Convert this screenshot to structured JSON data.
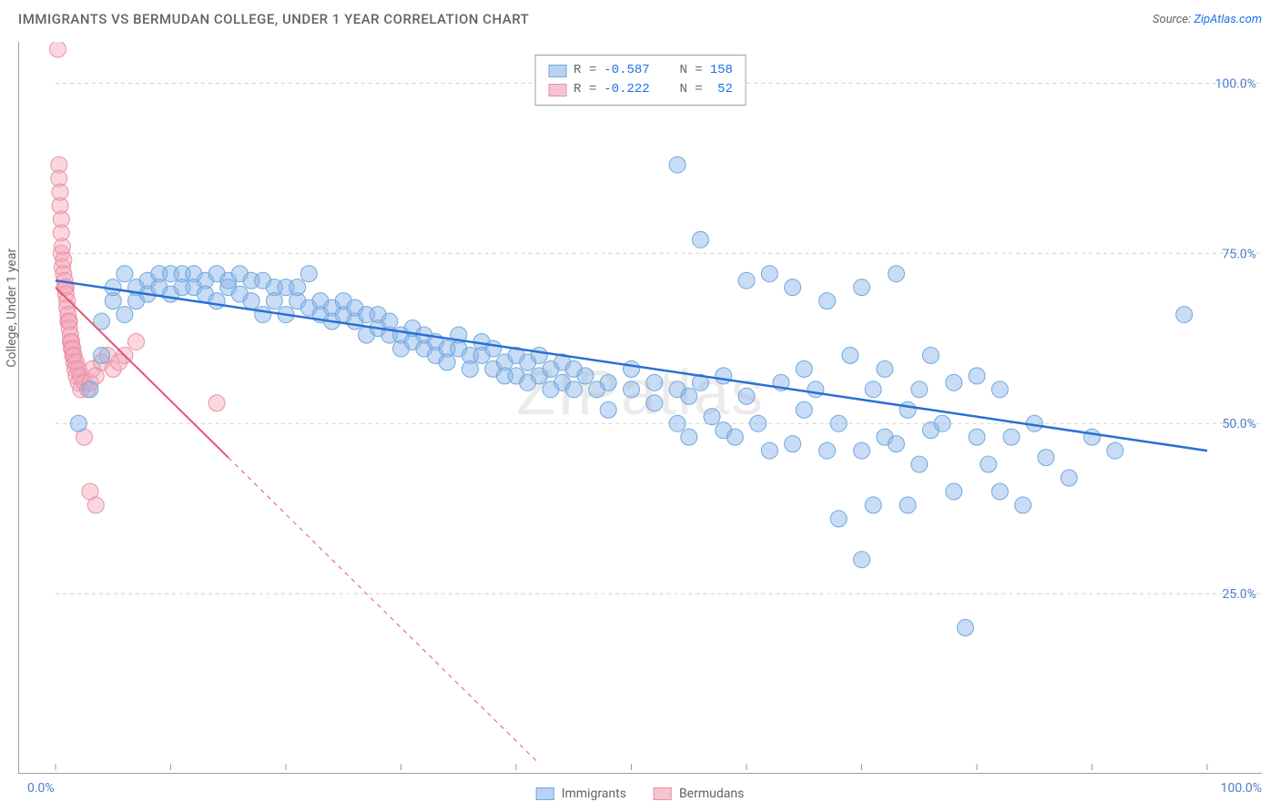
{
  "title": "IMMIGRANTS VS BERMUDAN COLLEGE, UNDER 1 YEAR CORRELATION CHART",
  "source_prefix": "Source: ",
  "source_link": "ZipAtlas.com",
  "ylabel": "College, Under 1 year",
  "watermark": "ZIPatlas",
  "chart": {
    "type": "scatter",
    "background": "#ffffff",
    "grid_color": "#d0d0d0",
    "axis_color": "#9aa0a6",
    "xlim": [
      0,
      100
    ],
    "ylim": [
      0,
      105
    ],
    "x_tick_step": 10,
    "y_gridlines": [
      25,
      50,
      75,
      100
    ],
    "y_tick_labels": [
      "25.0%",
      "50.0%",
      "75.0%",
      "100.0%"
    ],
    "x_axis_labels": {
      "left": "0.0%",
      "right": "100.0%"
    },
    "axis_label_color": "#4f7dd1",
    "axis_label_fontsize": 14,
    "series": [
      {
        "name": "Immigrants",
        "marker_color_fill": "rgba(133,178,233,0.45)",
        "marker_color_stroke": "#6fa8dc",
        "marker_radius": 9,
        "trend_color": "#2b6fd4",
        "trend_width": 2.5,
        "trend_start": [
          0,
          71
        ],
        "trend_end": [
          100,
          46
        ],
        "trend_dashed_from_x": null,
        "R": "-0.587",
        "N": "158",
        "swatch_fill": "#b9d3f4",
        "swatch_border": "#6fa8dc",
        "points": [
          [
            2,
            50
          ],
          [
            3,
            55
          ],
          [
            4,
            60
          ],
          [
            4,
            65
          ],
          [
            5,
            68
          ],
          [
            5,
            70
          ],
          [
            6,
            66
          ],
          [
            6,
            72
          ],
          [
            7,
            70
          ],
          [
            7,
            68
          ],
          [
            8,
            71
          ],
          [
            8,
            69
          ],
          [
            9,
            72
          ],
          [
            9,
            70
          ],
          [
            10,
            72
          ],
          [
            10,
            69
          ],
          [
            11,
            72
          ],
          [
            11,
            70
          ],
          [
            12,
            72
          ],
          [
            12,
            70
          ],
          [
            13,
            71
          ],
          [
            13,
            69
          ],
          [
            14,
            72
          ],
          [
            14,
            68
          ],
          [
            15,
            71
          ],
          [
            15,
            70
          ],
          [
            16,
            72
          ],
          [
            16,
            69
          ],
          [
            17,
            71
          ],
          [
            17,
            68
          ],
          [
            18,
            71
          ],
          [
            18,
            66
          ],
          [
            19,
            70
          ],
          [
            19,
            68
          ],
          [
            20,
            70
          ],
          [
            20,
            66
          ],
          [
            21,
            68
          ],
          [
            21,
            70
          ],
          [
            22,
            72
          ],
          [
            22,
            67
          ],
          [
            23,
            68
          ],
          [
            23,
            66
          ],
          [
            24,
            67
          ],
          [
            24,
            65
          ],
          [
            25,
            66
          ],
          [
            25,
            68
          ],
          [
            26,
            65
          ],
          [
            26,
            67
          ],
          [
            27,
            66
          ],
          [
            27,
            63
          ],
          [
            28,
            64
          ],
          [
            28,
            66
          ],
          [
            29,
            63
          ],
          [
            29,
            65
          ],
          [
            30,
            63
          ],
          [
            30,
            61
          ],
          [
            31,
            62
          ],
          [
            31,
            64
          ],
          [
            32,
            61
          ],
          [
            32,
            63
          ],
          [
            33,
            62
          ],
          [
            33,
            60
          ],
          [
            34,
            61
          ],
          [
            34,
            59
          ],
          [
            35,
            61
          ],
          [
            35,
            63
          ],
          [
            36,
            60
          ],
          [
            36,
            58
          ],
          [
            37,
            60
          ],
          [
            37,
            62
          ],
          [
            38,
            58
          ],
          [
            38,
            61
          ],
          [
            39,
            59
          ],
          [
            39,
            57
          ],
          [
            40,
            57
          ],
          [
            40,
            60
          ],
          [
            41,
            56
          ],
          [
            41,
            59
          ],
          [
            42,
            60
          ],
          [
            42,
            57
          ],
          [
            43,
            58
          ],
          [
            43,
            55
          ],
          [
            44,
            56
          ],
          [
            44,
            59
          ],
          [
            45,
            55
          ],
          [
            45,
            58
          ],
          [
            46,
            57
          ],
          [
            47,
            55
          ],
          [
            48,
            56
          ],
          [
            48,
            52
          ],
          [
            50,
            55
          ],
          [
            50,
            58
          ],
          [
            52,
            53
          ],
          [
            52,
            56
          ],
          [
            54,
            50
          ],
          [
            54,
            55
          ],
          [
            54,
            88
          ],
          [
            55,
            48
          ],
          [
            55,
            54
          ],
          [
            56,
            56
          ],
          [
            56,
            77
          ],
          [
            57,
            51
          ],
          [
            58,
            57
          ],
          [
            58,
            49
          ],
          [
            59,
            48
          ],
          [
            60,
            54
          ],
          [
            60,
            71
          ],
          [
            61,
            50
          ],
          [
            62,
            72
          ],
          [
            62,
            46
          ],
          [
            63,
            56
          ],
          [
            64,
            47
          ],
          [
            64,
            70
          ],
          [
            65,
            52
          ],
          [
            65,
            58
          ],
          [
            66,
            55
          ],
          [
            67,
            46
          ],
          [
            67,
            68
          ],
          [
            68,
            36
          ],
          [
            68,
            50
          ],
          [
            69,
            60
          ],
          [
            70,
            46
          ],
          [
            70,
            70
          ],
          [
            70,
            30
          ],
          [
            71,
            55
          ],
          [
            71,
            38
          ],
          [
            72,
            48
          ],
          [
            72,
            58
          ],
          [
            73,
            47
          ],
          [
            73,
            72
          ],
          [
            74,
            52
          ],
          [
            74,
            38
          ],
          [
            75,
            55
          ],
          [
            75,
            44
          ],
          [
            76,
            49
          ],
          [
            76,
            60
          ],
          [
            77,
            50
          ],
          [
            78,
            40
          ],
          [
            78,
            56
          ],
          [
            79,
            20
          ],
          [
            80,
            48
          ],
          [
            80,
            57
          ],
          [
            81,
            44
          ],
          [
            82,
            40
          ],
          [
            82,
            55
          ],
          [
            83,
            48
          ],
          [
            84,
            38
          ],
          [
            85,
            50
          ],
          [
            86,
            45
          ],
          [
            88,
            42
          ],
          [
            90,
            48
          ],
          [
            92,
            46
          ],
          [
            98,
            66
          ]
        ]
      },
      {
        "name": "Bermudans",
        "marker_color_fill": "rgba(244,167,185,0.45)",
        "marker_color_stroke": "#e890a8",
        "marker_radius": 9,
        "trend_color": "#e25578",
        "trend_width": 2,
        "trend_start": [
          0,
          70
        ],
        "trend_end": [
          42,
          0
        ],
        "trend_dashed_from_x": 15,
        "R": "-0.222",
        "N": "52",
        "swatch_fill": "#f6c4d0",
        "swatch_border": "#e890a8",
        "points": [
          [
            0.2,
            105
          ],
          [
            0.3,
            88
          ],
          [
            0.3,
            86
          ],
          [
            0.4,
            82
          ],
          [
            0.4,
            84
          ],
          [
            0.5,
            80
          ],
          [
            0.5,
            78
          ],
          [
            0.5,
            75
          ],
          [
            0.6,
            76
          ],
          [
            0.6,
            73
          ],
          [
            0.7,
            74
          ],
          [
            0.7,
            72
          ],
          [
            0.8,
            71
          ],
          [
            0.8,
            70
          ],
          [
            0.9,
            70
          ],
          [
            0.9,
            69
          ],
          [
            1.0,
            68
          ],
          [
            1.0,
            67
          ],
          [
            1.1,
            66
          ],
          [
            1.1,
            65
          ],
          [
            1.2,
            65
          ],
          [
            1.2,
            64
          ],
          [
            1.3,
            63
          ],
          [
            1.3,
            62
          ],
          [
            1.4,
            62
          ],
          [
            1.4,
            61
          ],
          [
            1.5,
            60
          ],
          [
            1.5,
            61
          ],
          [
            1.6,
            59
          ],
          [
            1.6,
            60
          ],
          [
            1.7,
            58
          ],
          [
            1.8,
            59
          ],
          [
            1.8,
            57
          ],
          [
            2.0,
            58
          ],
          [
            2.0,
            56
          ],
          [
            2.2,
            57
          ],
          [
            2.2,
            55
          ],
          [
            2.5,
            56
          ],
          [
            2.5,
            48
          ],
          [
            2.8,
            55
          ],
          [
            3.0,
            56
          ],
          [
            3.0,
            40
          ],
          [
            3.2,
            58
          ],
          [
            3.5,
            57
          ],
          [
            3.5,
            38
          ],
          [
            4.0,
            59
          ],
          [
            4.5,
            60
          ],
          [
            5.0,
            58
          ],
          [
            5.5,
            59
          ],
          [
            6.0,
            60
          ],
          [
            7.0,
            62
          ],
          [
            14,
            53
          ]
        ]
      }
    ]
  },
  "legend_top_labels": {
    "R": "R =",
    "N": "N ="
  },
  "legend_bottom": [
    "Immigrants",
    "Bermudans"
  ]
}
